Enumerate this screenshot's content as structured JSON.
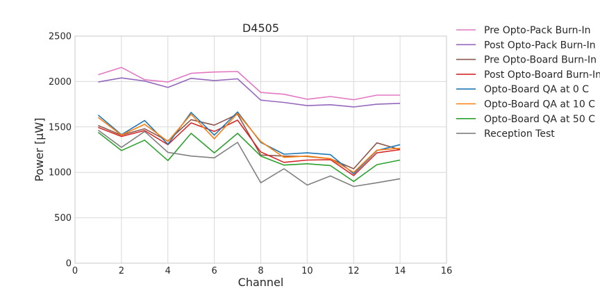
{
  "chart_data": {
    "type": "line",
    "title": "D4505",
    "xlabel": "Channel",
    "ylabel": "Power [μW]",
    "xlim": [
      0,
      16
    ],
    "ylim": [
      0,
      2500
    ],
    "xticks": [
      "0",
      "2",
      "4",
      "6",
      "8",
      "10",
      "12",
      "14",
      "16"
    ],
    "yticks": [
      "0",
      "500",
      "1000",
      "1500",
      "2000",
      "2500"
    ],
    "grid": true,
    "legend_position": "outside-right-top",
    "x": [
      1,
      2,
      3,
      4,
      5,
      6,
      7,
      8,
      9,
      10,
      11,
      12,
      13,
      14
    ],
    "series": [
      {
        "name": "Pre Opto-Pack Burn-In",
        "color": "#e377c2",
        "values": [
          2075,
          2155,
          2020,
          1995,
          2090,
          2105,
          2110,
          1880,
          1860,
          1805,
          1835,
          1800,
          1850,
          1850
        ]
      },
      {
        "name": "Post Opto-Pack Burn-In",
        "color": "#9467bd",
        "values": [
          1995,
          2040,
          2005,
          1935,
          2035,
          2010,
          2030,
          1795,
          1770,
          1735,
          1745,
          1720,
          1750,
          1760
        ]
      },
      {
        "name": "Pre Opto-Board Burn-In",
        "color": "#8c564b",
        "values": [
          1515,
          1410,
          1480,
          1345,
          1580,
          1520,
          1640,
          1190,
          1180,
          1175,
          1150,
          1040,
          1325,
          1250
        ]
      },
      {
        "name": "Post Opto-Board Burn-In",
        "color": "#d62728",
        "values": [
          1495,
          1395,
          1460,
          1305,
          1545,
          1450,
          1575,
          1225,
          1110,
          1135,
          1140,
          965,
          1215,
          1250
        ]
      },
      {
        "name": "Opto-Board QA at 0 C",
        "color": "#1f77b4",
        "values": [
          1630,
          1415,
          1570,
          1310,
          1660,
          1410,
          1665,
          1330,
          1200,
          1215,
          1195,
          985,
          1240,
          1305
        ]
      },
      {
        "name": "Opto-Board QA at 10 C",
        "color": "#ff7f0e",
        "values": [
          1605,
          1410,
          1530,
          1340,
          1640,
          1370,
          1650,
          1340,
          1165,
          1180,
          1150,
          1000,
          1245,
          1265
        ]
      },
      {
        "name": "Opto-Board QA at 50 C",
        "color": "#2ca02c",
        "values": [
          1440,
          1240,
          1355,
          1130,
          1430,
          1215,
          1430,
          1180,
          1080,
          1095,
          1075,
          900,
          1085,
          1135
        ]
      },
      {
        "name": "Reception Test",
        "color": "#7f7f7f",
        "values": [
          1465,
          1275,
          1450,
          1220,
          1180,
          1160,
          1330,
          885,
          1040,
          860,
          960,
          845,
          885,
          930
        ]
      }
    ]
  }
}
